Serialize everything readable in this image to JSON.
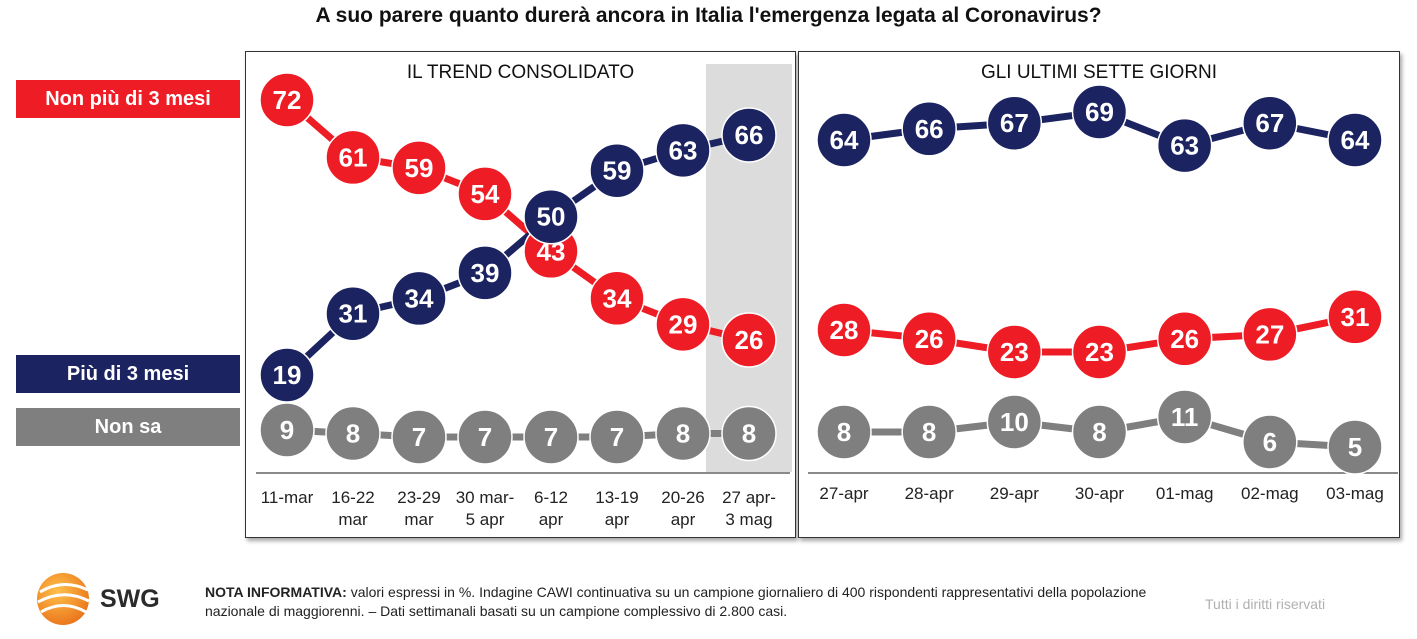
{
  "title": "A suo parere quanto durerà ancora in Italia l'emergenza legata al Coronavirus?",
  "legend": [
    {
      "label": "Non più di 3 mesi",
      "color": "#ee1c25"
    },
    {
      "label": "Più di 3 mesi",
      "color": "#1b2361"
    },
    {
      "label": "Non sa",
      "color": "#7f7f7f"
    }
  ],
  "chart_data": [
    {
      "type": "line",
      "title": "IL TREND CONSOLIDATO",
      "categories": [
        [
          "11-mar"
        ],
        [
          "16-22",
          "mar"
        ],
        [
          "23-29",
          "mar"
        ],
        [
          "30 mar-",
          "5 apr"
        ],
        [
          "6-12",
          "apr"
        ],
        [
          "13-19",
          "apr"
        ],
        [
          "20-26",
          "apr"
        ],
        [
          "27 apr-",
          "3 mag"
        ]
      ],
      "highlighted_category": 7,
      "series": [
        {
          "name": "Non più di 3 mesi",
          "color": "#ee1c25",
          "values": [
            72,
            61,
            59,
            54,
            43,
            34,
            29,
            26
          ]
        },
        {
          "name": "Più di 3 mesi",
          "color": "#1b2361",
          "values": [
            19,
            31,
            34,
            39,
            50,
            59,
            63,
            66
          ]
        },
        {
          "name": "Non sa",
          "color": "#7f7f7f",
          "values": [
            9,
            8,
            7,
            7,
            7,
            7,
            8,
            8
          ]
        }
      ]
    },
    {
      "type": "line",
      "title": "GLI ULTIMI SETTE GIORNI",
      "categories": [
        [
          "27-apr"
        ],
        [
          "28-apr"
        ],
        [
          "29-apr"
        ],
        [
          "30-apr"
        ],
        [
          "01-mag"
        ],
        [
          "02-mag"
        ],
        [
          "03-mag"
        ]
      ],
      "series": [
        {
          "name": "Più di 3 mesi",
          "color": "#1b2361",
          "values": [
            64,
            66,
            67,
            69,
            63,
            67,
            64
          ]
        },
        {
          "name": "Non più di 3 mesi",
          "color": "#ee1c25",
          "values": [
            28,
            26,
            23,
            23,
            26,
            27,
            31
          ]
        },
        {
          "name": "Non sa",
          "color": "#7f7f7f",
          "values": [
            8,
            8,
            10,
            8,
            11,
            6,
            5
          ]
        }
      ]
    }
  ],
  "footer": {
    "brand": "SWG",
    "note_label": "NOTA INFORMATIVA:",
    "note_text": "valori espressi in %. Indagine CAWI continuativa su un campione giornaliero di 400 rispondenti rappresentativi della popolazione nazionale di maggiorenni. – Dati settimanali basati su un campione complessivo di 2.800 casi.",
    "rights": "Tutti i diritti riservati"
  }
}
